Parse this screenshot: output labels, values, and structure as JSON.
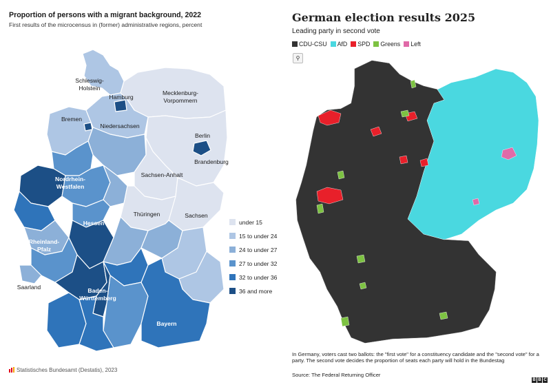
{
  "left_map": {
    "title": "Proportion of persons with a migrant background, 2022",
    "subtitle": "First results of the microcensus in (former) administrative regions, percent",
    "credit": "Statistisches Bundesamt (Destatis), 2023",
    "legend": [
      {
        "label": "under 15",
        "color": "#dde3ef"
      },
      {
        "label": "15 to under 24",
        "color": "#aec6e4"
      },
      {
        "label": "24 to under 27",
        "color": "#8cb0d8"
      },
      {
        "label": "27 to under 32",
        "color": "#5a93cc"
      },
      {
        "label": "32 to under 36",
        "color": "#2f74ba"
      },
      {
        "label": "36 and more",
        "color": "#1c4f86"
      }
    ],
    "state_labels": {
      "schleswig_holstein": "Schleswig-\nHolstein",
      "hamburg": "Hamburg",
      "mecklenburg": "Mecklenburg-\nVorpommern",
      "bremen": "Bremen",
      "niedersachsen": "Niedersachsen",
      "berlin": "Berlin",
      "brandenburg": "Brandenburg",
      "nordrhein_westfalen": "Nordrhein-\nWestfalen",
      "sachsen_anhalt": "Sachsen-Anhalt",
      "hessen": "Hessen",
      "thueringen": "Thüringen",
      "sachsen": "Sachsen",
      "rheinland_pfalz": "Rheinland-\nPfalz",
      "saarland": "Saarland",
      "baden_wuerttemberg": "Baden-\nWürttemberg",
      "bayern": "Bayern"
    }
  },
  "right_map": {
    "title": "German election results 2025",
    "subtitle": "Leading party in second vote",
    "legend": [
      {
        "label": "CDU-CSU",
        "color": "#333333"
      },
      {
        "label": "AfD",
        "color": "#4ad8e0"
      },
      {
        "label": "SPD",
        "color": "#e8202a"
      },
      {
        "label": "Greens",
        "color": "#7dc242"
      },
      {
        "label": "Left",
        "color": "#e06aa8"
      }
    ],
    "zoom_icon": "magnifier-icon",
    "note": "In Germany, voters cast two ballots: the \"first vote\" for a constituency candidate and the \"second vote\" for a party. The second vote decides the proportion of seats each party will hold in the Bundestag",
    "source": "Source: The Federal Returning Officer",
    "logo_text": [
      "B",
      "B",
      "C"
    ]
  }
}
